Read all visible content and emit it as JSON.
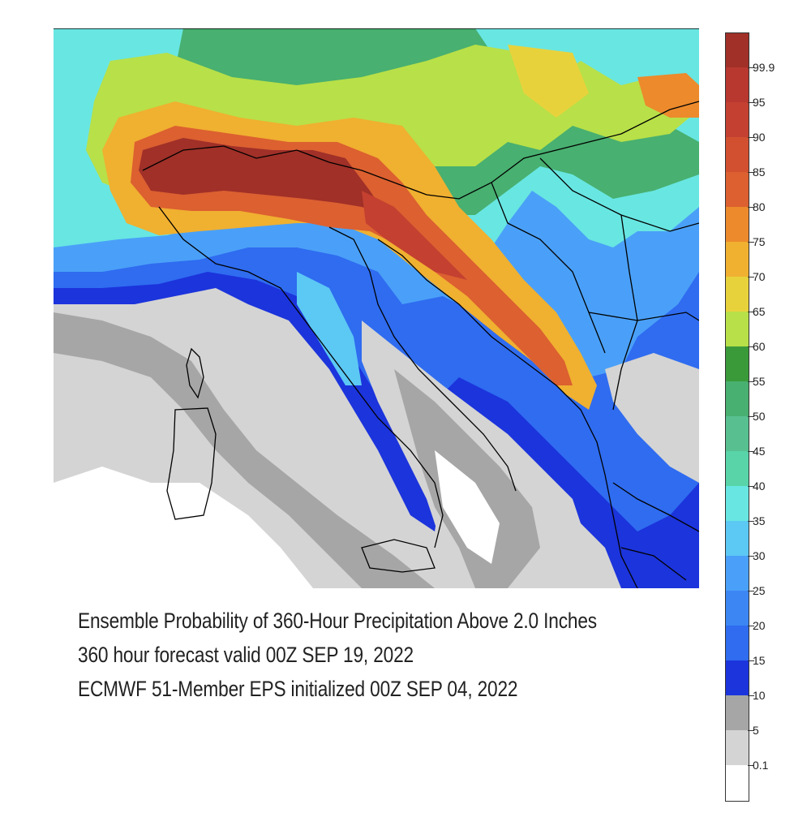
{
  "map": {
    "region": "Italy and the Balkans",
    "colors": {
      "c0": "#ffffff",
      "c1": "#d4d4d4",
      "c2": "#a6a6a6",
      "c3": "#1c34dc",
      "c4": "#2f6cf0",
      "c5": "#4aa0f8",
      "c6": "#5cc8f4",
      "c7": "#68e6e2",
      "c8": "#58d4a8",
      "c9": "#48b070",
      "c10": "#3a9a3a",
      "c11": "#b8e048",
      "c12": "#e8d23c",
      "c13": "#f0b030",
      "c14": "#ec8a2c",
      "c15": "#dc6030",
      "c16": "#c44030",
      "c17": "#a03028"
    }
  },
  "caption": {
    "line1": "Ensemble Probability of 360-Hour Precipitation Above 2.0 Inches",
    "line2": "360 hour forecast valid 00Z SEP 19, 2022",
    "line3": "ECMWF 51-Member EPS initialized 00Z SEP 04, 2022"
  },
  "colorbar": {
    "labels": [
      "99.9",
      "95",
      "90",
      "85",
      "80",
      "75",
      "70",
      "65",
      "60",
      "55",
      "50",
      "45",
      "40",
      "35",
      "30",
      "25",
      "20",
      "15",
      "10",
      "5",
      "0.1"
    ],
    "colors": [
      "#a03028",
      "#b83830",
      "#c44030",
      "#d25030",
      "#dc6030",
      "#ec8a2c",
      "#f0b030",
      "#e8d23c",
      "#b8e048",
      "#3a9a3a",
      "#48b070",
      "#58c090",
      "#58d4a8",
      "#68e6e2",
      "#5cc8f4",
      "#4aa0f8",
      "#3c86f4",
      "#2f6cf0",
      "#1c34dc",
      "#a6a6a6",
      "#d4d4d4",
      "#ffffff"
    ]
  }
}
